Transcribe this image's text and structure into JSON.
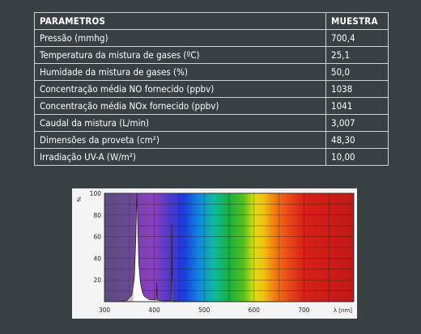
{
  "table": {
    "header": {
      "param": "PARAMETROS",
      "value": "MUESTRA"
    },
    "rows": [
      {
        "param": "Pressão (mmhg)",
        "value": "700,4"
      },
      {
        "param": "Temperatura da mistura de gases (ºC)",
        "value": "25,1"
      },
      {
        "param": "Humidade da mistura de gases (%)",
        "value": "50,0"
      },
      {
        "param": "Concentração média NO fornecido (ppbv)",
        "value": "1038"
      },
      {
        "param": "Concentração média NOx fornecido (ppbv)",
        "value": "1041"
      },
      {
        "param": "Caudal da mistura (L/min)",
        "value": "3,007"
      },
      {
        "param": "Dimensões da proveta (cm²)",
        "value": "48,30"
      },
      {
        "param": "Irradiação UV-A (W/m²)",
        "value": "10,00"
      }
    ]
  },
  "chart_data": {
    "type": "area",
    "title": "",
    "xlabel": "λ [nm]",
    "ylabel": "%",
    "xlim": [
      300,
      800
    ],
    "ylim": [
      0,
      100
    ],
    "xticks": [
      300,
      400,
      500,
      600,
      700
    ],
    "yticks": [
      20,
      40,
      60,
      80,
      100
    ],
    "grid": true,
    "colors": {
      "fill": "#5b5274",
      "spectrum_violet": "#8a3fbf",
      "spectrum_red": "#d01818"
    },
    "series": [
      {
        "x": [
          300,
          330,
          345,
          355,
          360,
          363,
          365,
          367,
          369,
          372,
          376,
          380,
          390,
          400,
          404,
          405,
          406,
          410,
          420,
          430,
          434,
          435,
          436,
          440,
          450,
          500,
          546,
          800
        ],
        "y": [
          0,
          0,
          1,
          6,
          22,
          60,
          100,
          70,
          35,
          18,
          9,
          5,
          2,
          1.5,
          1.5,
          18,
          1.5,
          1,
          0.8,
          0.8,
          0.8,
          72,
          0.8,
          0.5,
          0.3,
          0.1,
          0,
          0
        ]
      }
    ]
  }
}
